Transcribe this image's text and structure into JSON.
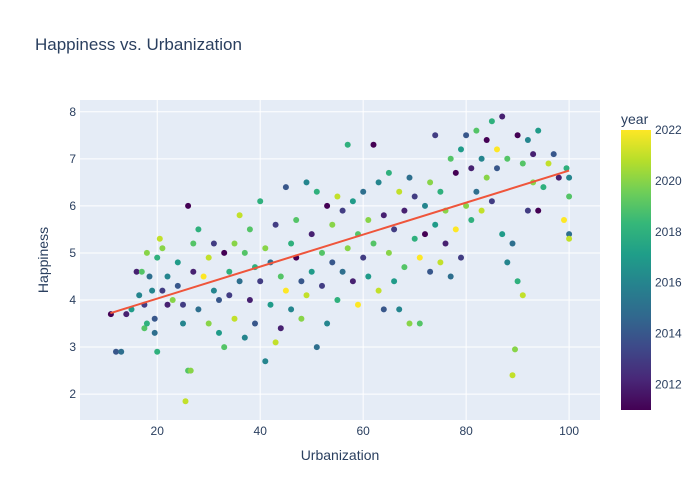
{
  "chart_data": {
    "type": "scatter",
    "title": "Happiness vs. Urbanization",
    "xlabel": "Urbanization",
    "ylabel": "Happiness",
    "xlim": [
      5,
      106
    ],
    "ylim": [
      1.45,
      8.25
    ],
    "x_ticks": [
      20,
      40,
      60,
      80,
      100
    ],
    "y_ticks": [
      2,
      3,
      4,
      5,
      6,
      7,
      8
    ],
    "grid": true,
    "colorbar": {
      "title": "year",
      "range": [
        2011,
        2022
      ],
      "ticks": [
        2012,
        2014,
        2016,
        2018,
        2020,
        2022
      ],
      "colorscale": [
        "#440154",
        "#482878",
        "#3e4989",
        "#31688e",
        "#26828e",
        "#1f9e89",
        "#35b779",
        "#6ece58",
        "#b5de2b",
        "#fde725"
      ]
    },
    "trendline": {
      "x": [
        10.9,
        100
      ],
      "y": [
        3.72,
        6.75
      ],
      "color": "#ef553b"
    },
    "series": [
      {
        "marker_color_by": "year",
        "points": [
          [
            11,
            3.7,
            2011
          ],
          [
            12,
            2.9,
            2014
          ],
          [
            13,
            2.9,
            2015
          ],
          [
            14,
            3.7,
            2012
          ],
          [
            15,
            3.8,
            2017
          ],
          [
            16,
            4.6,
            2012
          ],
          [
            16.5,
            4.1,
            2016
          ],
          [
            17,
            4.6,
            2019
          ],
          [
            17.5,
            3.9,
            2013
          ],
          [
            17.5,
            3.4,
            2019
          ],
          [
            18,
            5.0,
            2020
          ],
          [
            18,
            3.5,
            2018
          ],
          [
            18.5,
            4.5,
            2015
          ],
          [
            19,
            4.2,
            2016
          ],
          [
            19.5,
            3.6,
            2014
          ],
          [
            19.5,
            3.3,
            2015
          ],
          [
            20,
            4.9,
            2018
          ],
          [
            20,
            2.9,
            2018
          ],
          [
            20.5,
            5.3,
            2021
          ],
          [
            21,
            5.1,
            2020
          ],
          [
            21,
            4.2,
            2013
          ],
          [
            22,
            4.5,
            2016
          ],
          [
            22,
            3.9,
            2012
          ],
          [
            23,
            4.0,
            2020
          ],
          [
            24,
            4.3,
            2014
          ],
          [
            24,
            4.8,
            2017
          ],
          [
            25,
            3.9,
            2013
          ],
          [
            25,
            3.5,
            2016
          ],
          [
            25.5,
            1.85,
            2021
          ],
          [
            26,
            6.0,
            2011
          ],
          [
            26,
            2.5,
            2019
          ],
          [
            26.5,
            2.5,
            2020
          ],
          [
            27,
            4.6,
            2012
          ],
          [
            27,
            5.2,
            2019
          ],
          [
            28,
            5.5,
            2018
          ],
          [
            28,
            3.8,
            2015
          ],
          [
            29,
            4.5,
            2022
          ],
          [
            30,
            4.9,
            2021
          ],
          [
            30,
            3.5,
            2020
          ],
          [
            31,
            4.2,
            2016
          ],
          [
            31,
            5.2,
            2013
          ],
          [
            32,
            4.0,
            2014
          ],
          [
            32,
            3.3,
            2017
          ],
          [
            33,
            3.0,
            2019
          ],
          [
            33,
            5.0,
            2011
          ],
          [
            34,
            4.6,
            2018
          ],
          [
            34,
            4.1,
            2013
          ],
          [
            35,
            5.2,
            2020
          ],
          [
            35,
            3.6,
            2021
          ],
          [
            36,
            5.8,
            2021
          ],
          [
            36,
            4.4,
            2015
          ],
          [
            37,
            5.0,
            2019
          ],
          [
            37,
            3.2,
            2016
          ],
          [
            38,
            4.0,
            2012
          ],
          [
            38,
            5.5,
            2019
          ],
          [
            39,
            4.7,
            2018
          ],
          [
            39,
            3.5,
            2014
          ],
          [
            40,
            6.1,
            2018
          ],
          [
            40,
            4.4,
            2013
          ],
          [
            41,
            2.7,
            2016
          ],
          [
            41,
            5.1,
            2020
          ],
          [
            42,
            4.8,
            2015
          ],
          [
            42,
            3.9,
            2017
          ],
          [
            43,
            3.1,
            2021
          ],
          [
            43,
            5.6,
            2013
          ],
          [
            44,
            4.5,
            2019
          ],
          [
            44,
            3.4,
            2012
          ],
          [
            45,
            6.4,
            2014
          ],
          [
            45,
            4.2,
            2022
          ],
          [
            46,
            5.2,
            2018
          ],
          [
            46,
            3.8,
            2016
          ],
          [
            47,
            4.9,
            2011
          ],
          [
            47,
            5.7,
            2019
          ],
          [
            48,
            4.4,
            2014
          ],
          [
            48,
            3.6,
            2020
          ],
          [
            49,
            6.5,
            2016
          ],
          [
            49,
            4.1,
            2021
          ],
          [
            50,
            5.4,
            2012
          ],
          [
            50,
            4.6,
            2017
          ],
          [
            51,
            6.3,
            2018
          ],
          [
            51,
            3.0,
            2015
          ],
          [
            52,
            5.0,
            2019
          ],
          [
            52,
            4.3,
            2013
          ],
          [
            53,
            6.0,
            2011
          ],
          [
            53,
            3.5,
            2016
          ],
          [
            54,
            5.6,
            2020
          ],
          [
            54,
            4.8,
            2014
          ],
          [
            55,
            6.2,
            2021
          ],
          [
            55,
            4.0,
            2018
          ],
          [
            56,
            5.9,
            2013
          ],
          [
            56,
            4.6,
            2015
          ],
          [
            57,
            7.3,
            2018
          ],
          [
            57,
            5.1,
            2020
          ],
          [
            58,
            6.1,
            2017
          ],
          [
            58,
            4.4,
            2012
          ],
          [
            59,
            5.4,
            2019
          ],
          [
            59,
            3.9,
            2022
          ],
          [
            60,
            6.3,
            2015
          ],
          [
            60,
            4.9,
            2013
          ],
          [
            61,
            5.7,
            2020
          ],
          [
            61,
            4.5,
            2017
          ],
          [
            62,
            7.3,
            2011
          ],
          [
            62,
            5.2,
            2019
          ],
          [
            63,
            6.5,
            2016
          ],
          [
            63,
            4.2,
            2021
          ],
          [
            64,
            5.8,
            2012
          ],
          [
            64,
            3.8,
            2014
          ],
          [
            65,
            6.7,
            2018
          ],
          [
            65,
            5.0,
            2020
          ],
          [
            66,
            5.5,
            2013
          ],
          [
            66,
            4.4,
            2017
          ],
          [
            67,
            6.3,
            2021
          ],
          [
            67,
            3.8,
            2016
          ],
          [
            68,
            5.9,
            2012
          ],
          [
            68,
            4.7,
            2019
          ],
          [
            69,
            6.6,
            2015
          ],
          [
            69,
            3.5,
            2020
          ],
          [
            70,
            5.3,
            2018
          ],
          [
            70,
            6.2,
            2013
          ],
          [
            71,
            4.9,
            2022
          ],
          [
            71,
            3.5,
            2019
          ],
          [
            72,
            6.0,
            2016
          ],
          [
            72,
            5.4,
            2011
          ],
          [
            73,
            4.6,
            2014
          ],
          [
            73,
            6.5,
            2020
          ],
          [
            74,
            7.5,
            2013
          ],
          [
            74,
            5.6,
            2017
          ],
          [
            75,
            4.8,
            2021
          ],
          [
            75,
            6.3,
            2018
          ],
          [
            76,
            5.2,
            2012
          ],
          [
            76,
            5.9,
            2020
          ],
          [
            77,
            7.0,
            2019
          ],
          [
            77,
            4.5,
            2015
          ],
          [
            78,
            6.7,
            2011
          ],
          [
            78,
            5.5,
            2022
          ],
          [
            79,
            7.2,
            2017
          ],
          [
            79,
            4.9,
            2013
          ],
          [
            80,
            6.0,
            2020
          ],
          [
            80,
            7.5,
            2014
          ],
          [
            81,
            5.7,
            2018
          ],
          [
            81,
            6.8,
            2012
          ],
          [
            82,
            7.6,
            2019
          ],
          [
            82,
            6.3,
            2015
          ],
          [
            83,
            5.9,
            2021
          ],
          [
            83,
            7.0,
            2016
          ],
          [
            84,
            7.4,
            2011
          ],
          [
            84,
            6.6,
            2020
          ],
          [
            85,
            7.8,
            2018
          ],
          [
            85,
            6.1,
            2013
          ],
          [
            86,
            7.2,
            2022
          ],
          [
            86,
            6.8,
            2014
          ],
          [
            87,
            7.9,
            2012
          ],
          [
            87,
            5.4,
            2017
          ],
          [
            88,
            7.0,
            2019
          ],
          [
            88,
            4.8,
            2016
          ],
          [
            89,
            2.4,
            2021
          ],
          [
            89,
            5.2,
            2015
          ],
          [
            89.5,
            2.95,
            2020
          ],
          [
            90,
            7.5,
            2011
          ],
          [
            90,
            4.4,
            2018
          ],
          [
            91,
            6.9,
            2019
          ],
          [
            91,
            4.1,
            2021
          ],
          [
            92,
            7.4,
            2016
          ],
          [
            92,
            5.9,
            2013
          ],
          [
            93,
            6.5,
            2020
          ],
          [
            93,
            7.1,
            2012
          ],
          [
            94,
            7.6,
            2017
          ],
          [
            94,
            5.9,
            2011
          ],
          [
            95,
            6.4,
            2018
          ],
          [
            96,
            6.9,
            2021
          ],
          [
            97,
            7.1,
            2014
          ],
          [
            98,
            6.6,
            2012
          ],
          [
            99,
            5.7,
            2022
          ],
          [
            99.5,
            6.8,
            2018
          ],
          [
            100,
            5.4,
            2015
          ],
          [
            100,
            6.2,
            2019
          ],
          [
            100,
            5.3,
            2021
          ],
          [
            100,
            6.6,
            2016
          ]
        ]
      }
    ]
  }
}
